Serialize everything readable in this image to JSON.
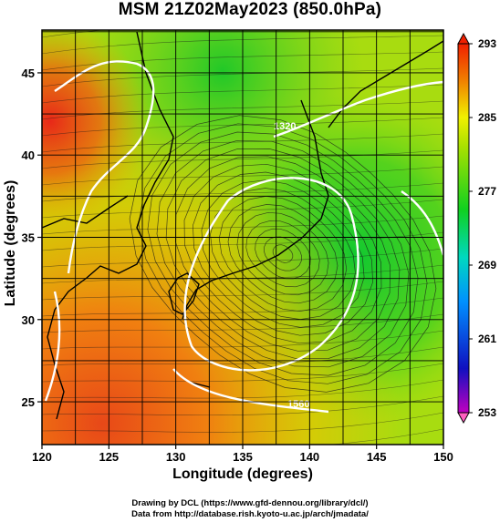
{
  "title": "MSM 21Z02May2023 (850.0hPa)",
  "x_axis": {
    "label": "Longitude (degrees)",
    "ticks": [
      120,
      125,
      130,
      135,
      140,
      145,
      150
    ],
    "range": [
      120,
      150
    ]
  },
  "y_axis": {
    "label": "Latitude  (degrees)",
    "ticks": [
      25,
      30,
      35,
      40,
      45
    ],
    "range": [
      22.4,
      47.6
    ]
  },
  "colorbar": {
    "ticks": [
      253,
      261,
      269,
      277,
      285,
      293
    ],
    "range": [
      253,
      293
    ],
    "unit_hint": "K"
  },
  "contour_labels": [
    "1320",
    "1560"
  ],
  "credits": {
    "line1": "Drawing by DCL (https://www.gfd-dennou.org/library/dcl/)",
    "line2": "Data from http://database.rish.kyoto-u.ac.jp/arch/jmadata/"
  },
  "colors": {
    "cold": "#0000c8",
    "mid": "#22cc22",
    "warm": "#f07000",
    "hot": "#e82020"
  }
}
